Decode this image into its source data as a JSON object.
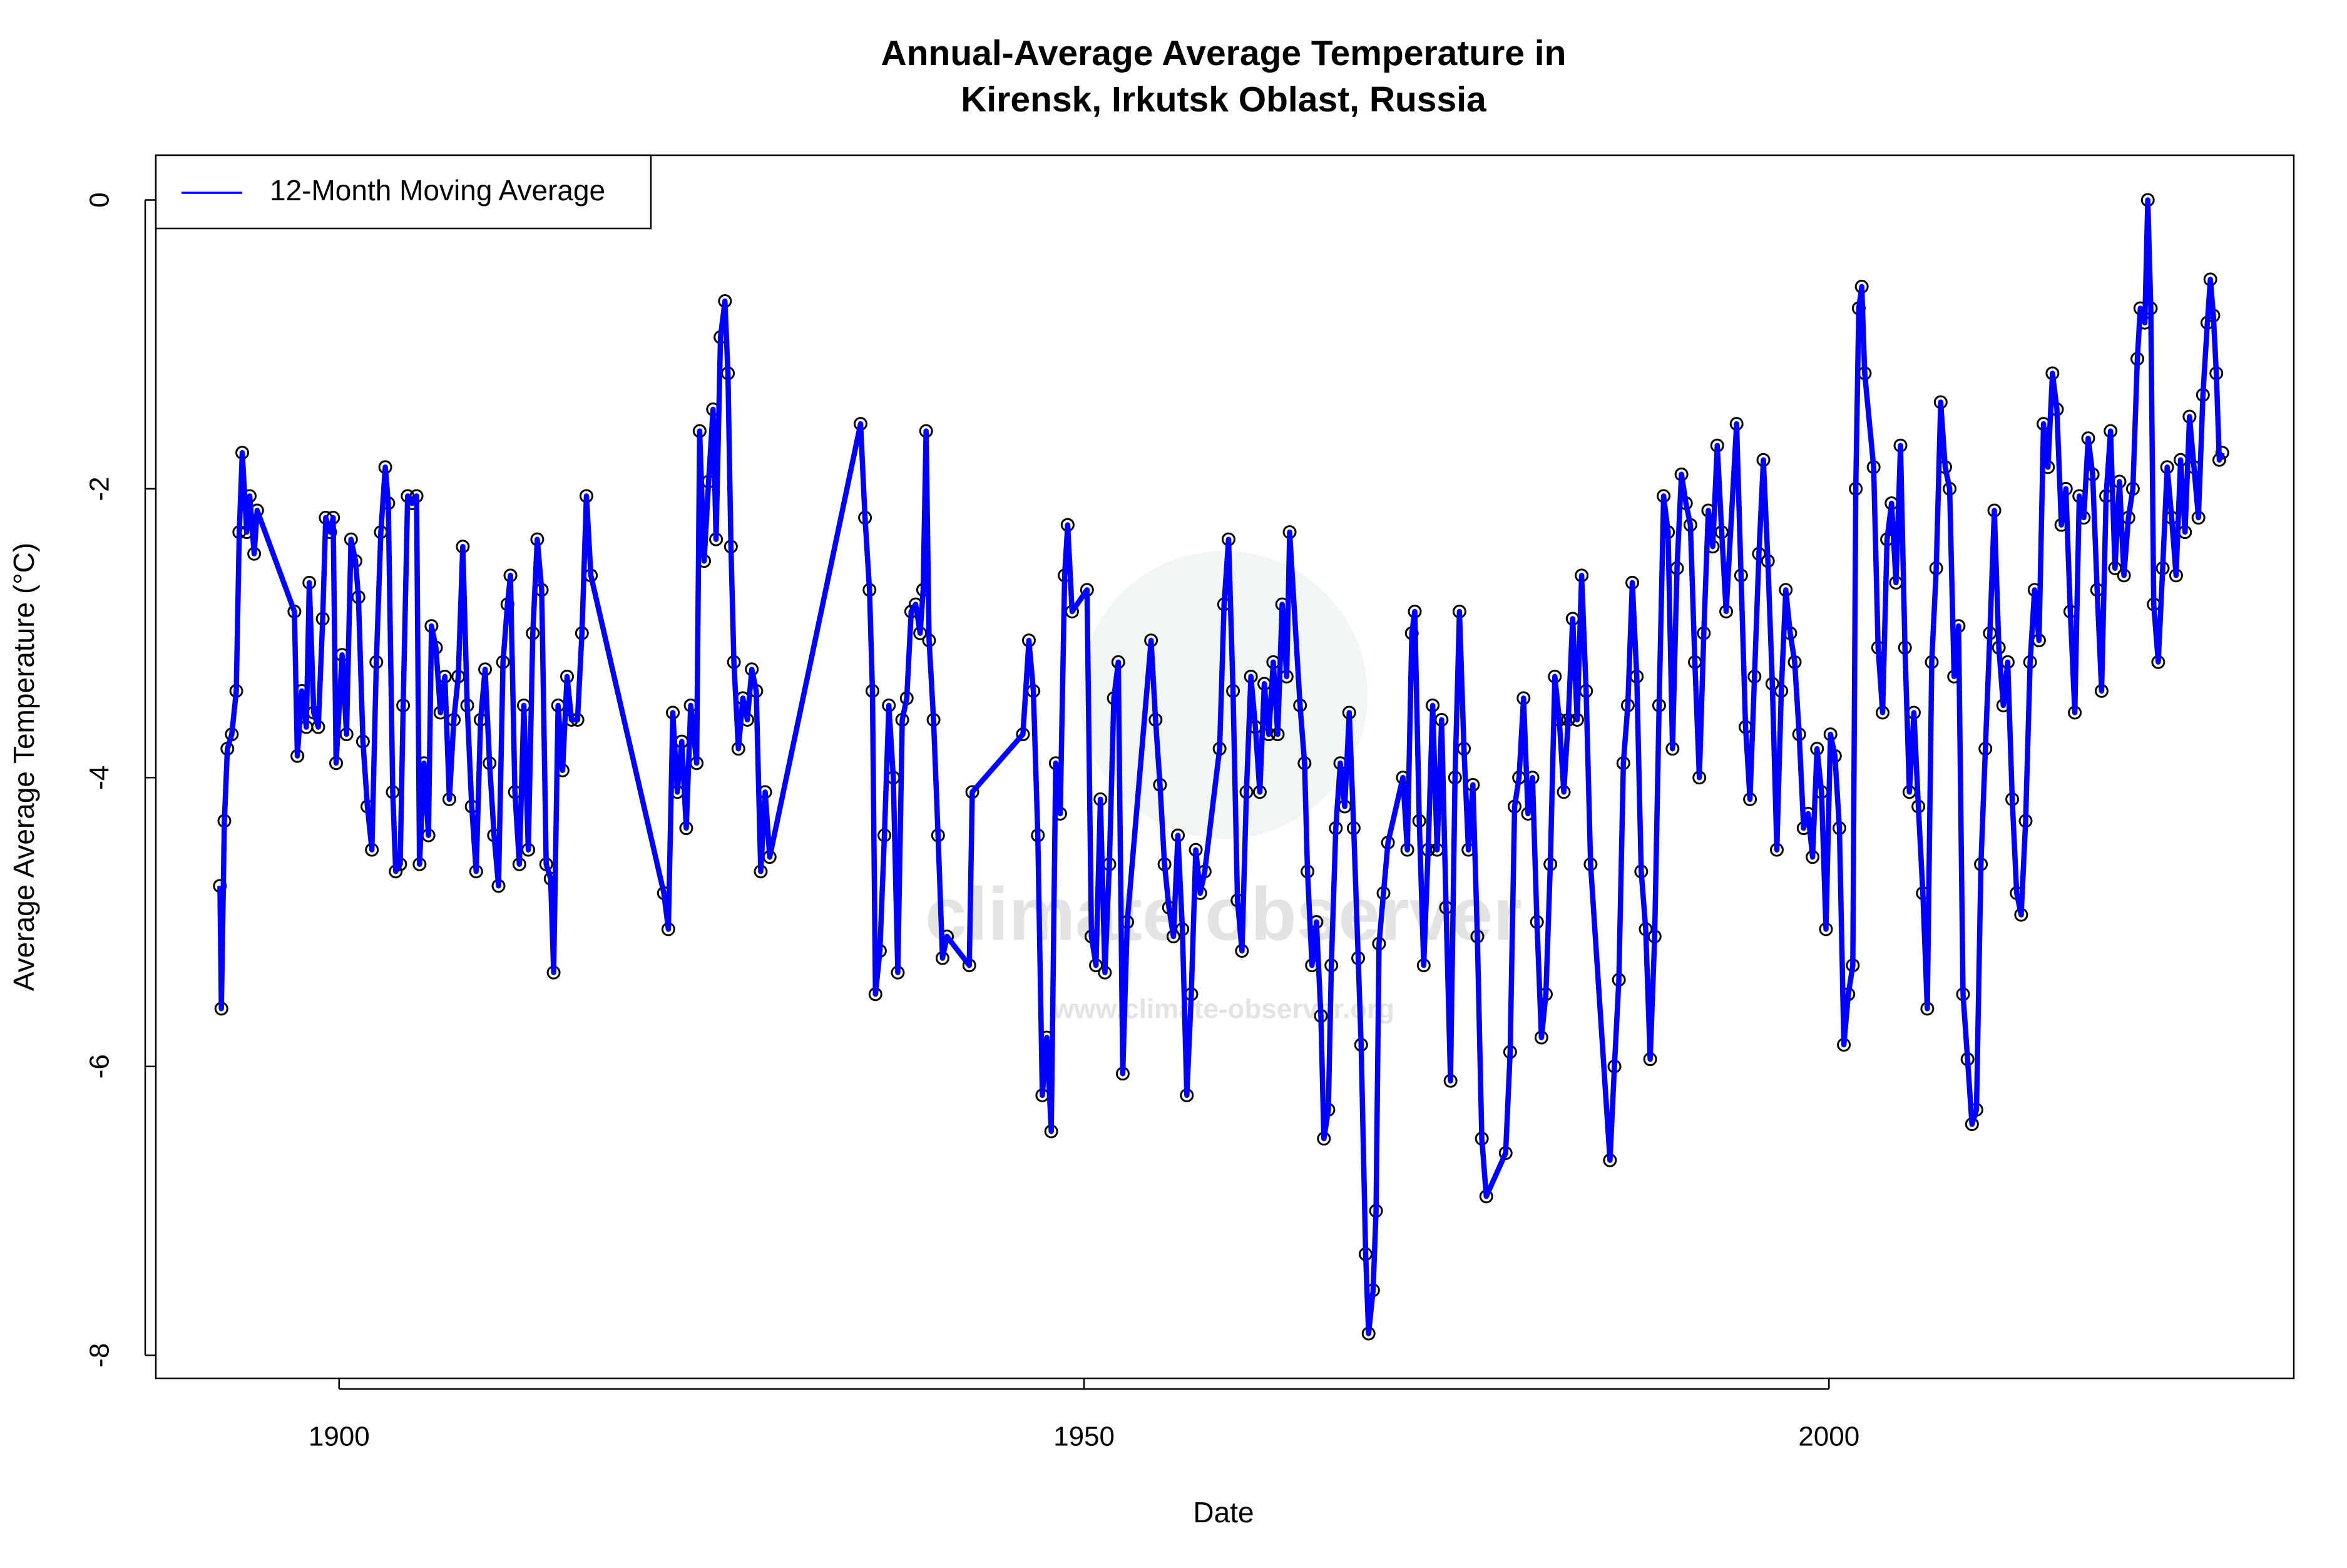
{
  "chart_data": {
    "type": "line",
    "title": [
      "Annual-Average Average Temperature in",
      "Kirensk, Irkutsk Oblast, Russia"
    ],
    "x_label": "Date",
    "y_label": "Average Average Temperature (°C)",
    "watermark": [
      "climate observer",
      "www.climate-observer.org"
    ],
    "legend": "top-left",
    "marker_color": "#000000",
    "xlim": [
      1887.7,
      2031.2
    ],
    "ylim": [
      -8.16,
      0.31
    ],
    "xticks": [
      1900,
      1950,
      2000
    ],
    "yticks": [
      0,
      -2,
      -4,
      -6,
      -8
    ],
    "x": [
      1892.0,
      1892.1,
      1892.3,
      1892.5,
      1892.8,
      1893.1,
      1893.3,
      1893.5,
      1893.8,
      1894.0,
      1894.3,
      1894.5,
      1897.0,
      1897.2,
      1897.5,
      1897.8,
      1898.0,
      1898.3,
      1898.6,
      1898.9,
      1899.1,
      1899.4,
      1899.6,
      1899.8,
      1900.2,
      1900.5,
      1900.8,
      1901.1,
      1901.3,
      1901.6,
      1901.9,
      1902.2,
      1902.5,
      1902.8,
      1903.1,
      1903.3,
      1903.6,
      1903.8,
      1904.1,
      1904.3,
      1904.6,
      1904.9,
      1905.2,
      1905.4,
      1905.7,
      1906.0,
      1906.2,
      1906.5,
      1906.8,
      1907.1,
      1907.4,
      1907.7,
      1908.0,
      1908.3,
      1908.6,
      1908.9,
      1909.2,
      1909.5,
      1909.8,
      1910.1,
      1910.4,
      1910.7,
      1911.0,
      1911.3,
      1911.5,
      1911.8,
      1912.1,
      1912.4,
      1912.7,
      1913.0,
      1913.3,
      1913.6,
      1913.9,
      1914.2,
      1914.4,
      1914.7,
      1915.0,
      1915.3,
      1915.6,
      1916.0,
      1916.3,
      1916.6,
      1916.9,
      1921.8,
      1922.1,
      1922.4,
      1922.7,
      1923.0,
      1923.3,
      1923.6,
      1924.0,
      1924.2,
      1924.5,
      1924.8,
      1925.1,
      1925.3,
      1925.6,
      1925.9,
      1926.1,
      1926.3,
      1926.5,
      1926.8,
      1927.1,
      1927.4,
      1927.7,
      1928.0,
      1928.3,
      1928.6,
      1928.9,
      1935.0,
      1935.3,
      1935.6,
      1935.8,
      1936.0,
      1936.3,
      1936.6,
      1936.9,
      1937.2,
      1937.5,
      1937.8,
      1938.1,
      1938.4,
      1938.7,
      1939.0,
      1939.2,
      1939.4,
      1939.6,
      1939.9,
      1940.2,
      1940.5,
      1940.8,
      1942.3,
      1942.5,
      1945.9,
      1946.3,
      1946.6,
      1946.9,
      1947.2,
      1947.5,
      1947.8,
      1948.1,
      1948.4,
      1948.7,
      1948.9,
      1949.2,
      1950.2,
      1950.5,
      1950.8,
      1951.1,
      1951.4,
      1951.7,
      1952.0,
      1952.3,
      1952.6,
      1952.9,
      1954.5,
      1954.8,
      1955.1,
      1955.4,
      1955.7,
      1956.0,
      1956.3,
      1956.6,
      1956.9,
      1957.2,
      1957.5,
      1957.8,
      1958.1,
      1959.1,
      1959.4,
      1959.7,
      1960.0,
      1960.3,
      1960.6,
      1960.9,
      1961.2,
      1961.5,
      1961.8,
      1962.1,
      1962.4,
      1962.7,
      1963.0,
      1963.3,
      1963.6,
      1963.8,
      1964.5,
      1964.8,
      1965.0,
      1965.3,
      1965.6,
      1965.9,
      1966.1,
      1966.4,
      1966.6,
      1966.9,
      1967.2,
      1967.5,
      1967.8,
      1968.1,
      1968.4,
      1968.6,
      1968.9,
      1969.1,
      1969.4,
      1969.6,
      1969.8,
      1970.1,
      1970.4,
      1971.4,
      1971.7,
      1972.0,
      1972.2,
      1972.5,
      1972.8,
      1973.1,
      1973.4,
      1973.7,
      1974.0,
      1974.3,
      1974.6,
      1974.9,
      1975.2,
      1975.5,
      1975.8,
      1976.1,
      1976.4,
      1976.7,
      1977.0,
      1978.3,
      1978.6,
      1978.9,
      1979.2,
      1979.5,
      1979.8,
      1980.1,
      1980.4,
      1980.7,
      1981.0,
      1981.3,
      1981.6,
      1981.9,
      1982.2,
      1982.5,
      1982.8,
      1983.1,
      1983.4,
      1983.7,
      1984.0,
      1985.3,
      1985.6,
      1985.9,
      1986.2,
      1986.5,
      1986.8,
      1987.1,
      1987.4,
      1987.7,
      1988.0,
      1988.3,
      1988.6,
      1988.9,
      1989.2,
      1989.5,
      1989.8,
      1990.1,
      1990.4,
      1990.7,
      1991.0,
      1991.3,
      1991.6,
      1991.9,
      1992.2,
      1992.5,
      1992.8,
      1993.1,
      1993.8,
      1994.1,
      1994.4,
      1994.7,
      1995.0,
      1995.3,
      1995.6,
      1995.9,
      1996.2,
      1996.5,
      1996.8,
      1997.1,
      1997.4,
      1997.7,
      1998.0,
      1998.3,
      1998.6,
      1998.9,
      1999.2,
      1999.5,
      1999.8,
      2000.1,
      2000.4,
      2000.7,
      2001.0,
      2001.3,
      2001.6,
      2001.8,
      2002.0,
      2002.2,
      2002.4,
      2003.0,
      2003.3,
      2003.6,
      2003.9,
      2004.2,
      2004.5,
      2004.8,
      2005.1,
      2005.4,
      2005.7,
      2006.0,
      2006.3,
      2006.6,
      2006.9,
      2007.2,
      2007.5,
      2007.8,
      2008.1,
      2008.4,
      2008.7,
      2009.0,
      2009.3,
      2009.6,
      2009.9,
      2010.2,
      2010.5,
      2010.8,
      2011.1,
      2011.4,
      2011.7,
      2012.0,
      2012.3,
      2012.6,
      2012.9,
      2013.2,
      2013.5,
      2013.8,
      2014.1,
      2014.4,
      2014.7,
      2015.0,
      2015.3,
      2015.6,
      2015.9,
      2016.2,
      2016.5,
      2016.8,
      2017.1,
      2017.4,
      2017.7,
      2018.0,
      2018.3,
      2018.6,
      2018.9,
      2019.2,
      2019.5,
      2019.8,
      2020.1,
      2020.4,
      2020.7,
      2020.9,
      2021.2,
      2021.4,
      2021.6,
      2021.8,
      2022.1,
      2022.4,
      2022.7,
      2023.0,
      2023.3,
      2023.6,
      2023.9,
      2024.2,
      2024.5,
      2024.8,
      2025.1,
      2025.4,
      2025.6,
      2025.8,
      2026.0,
      2026.2,
      2026.4
    ],
    "series": [
      {
        "name": "12-Month Moving Average",
        "color": "#0000ff",
        "values": [
          -4.75,
          -5.6,
          -4.3,
          -3.8,
          -3.7,
          -3.4,
          -2.3,
          -1.75,
          -2.3,
          -2.05,
          -2.45,
          -2.15,
          -2.85,
          -3.85,
          -3.4,
          -3.65,
          -2.65,
          -3.55,
          -3.65,
          -2.9,
          -2.2,
          -2.3,
          -2.2,
          -3.9,
          -3.15,
          -3.7,
          -2.35,
          -2.5,
          -2.75,
          -3.75,
          -4.2,
          -4.5,
          -3.2,
          -2.3,
          -1.85,
          -2.1,
          -4.1,
          -4.65,
          -4.6,
          -3.5,
          -2.05,
          -2.1,
          -2.05,
          -4.6,
          -3.9,
          -4.4,
          -2.95,
          -3.1,
          -3.55,
          -3.3,
          -4.15,
          -3.6,
          -3.3,
          -2.4,
          -3.5,
          -4.2,
          -4.65,
          -3.6,
          -3.25,
          -3.9,
          -4.4,
          -4.75,
          -3.2,
          -2.8,
          -2.6,
          -4.1,
          -4.6,
          -3.5,
          -4.5,
          -3.0,
          -2.35,
          -2.7,
          -4.6,
          -4.7,
          -5.35,
          -3.5,
          -3.95,
          -3.3,
          -3.6,
          -3.6,
          -3.0,
          -2.05,
          -2.6,
          -4.8,
          -5.05,
          -3.55,
          -4.1,
          -3.75,
          -4.35,
          -3.5,
          -3.9,
          -1.6,
          -2.5,
          -1.95,
          -1.45,
          -2.35,
          -0.95,
          -0.7,
          -1.2,
          -2.4,
          -3.2,
          -3.8,
          -3.45,
          -3.6,
          -3.25,
          -3.4,
          -4.65,
          -4.1,
          -4.55,
          -1.55,
          -2.2,
          -2.7,
          -3.4,
          -5.5,
          -5.2,
          -4.4,
          -3.5,
          -4.0,
          -5.35,
          -3.6,
          -3.45,
          -2.85,
          -2.8,
          -3.0,
          -2.7,
          -1.6,
          -3.05,
          -3.6,
          -4.4,
          -5.25,
          -5.1,
          -5.3,
          -4.1,
          -3.7,
          -3.05,
          -3.4,
          -4.4,
          -6.2,
          -5.8,
          -6.45,
          -3.9,
          -4.25,
          -2.6,
          -2.25,
          -2.85,
          -2.7,
          -5.1,
          -5.3,
          -4.15,
          -5.35,
          -4.6,
          -3.45,
          -3.2,
          -6.05,
          -5.0,
          -3.05,
          -3.6,
          -4.05,
          -4.6,
          -4.9,
          -5.1,
          -4.4,
          -5.05,
          -6.2,
          -5.5,
          -4.5,
          -4.8,
          -4.65,
          -3.8,
          -2.8,
          -2.35,
          -3.4,
          -4.85,
          -5.2,
          -4.1,
          -3.3,
          -3.65,
          -4.1,
          -3.35,
          -3.7,
          -3.2,
          -3.7,
          -2.8,
          -3.3,
          -2.3,
          -3.5,
          -3.9,
          -4.65,
          -5.3,
          -5.0,
          -5.65,
          -6.5,
          -6.3,
          -5.3,
          -4.35,
          -3.9,
          -4.2,
          -3.55,
          -4.35,
          -5.25,
          -5.85,
          -7.3,
          -7.85,
          -7.55,
          -7.0,
          -5.15,
          -4.8,
          -4.45,
          -4.0,
          -4.5,
          -3.0,
          -2.85,
          -4.3,
          -5.3,
          -4.5,
          -3.5,
          -4.5,
          -3.6,
          -4.9,
          -6.1,
          -4.0,
          -2.85,
          -3.8,
          -4.5,
          -4.05,
          -5.1,
          -6.5,
          -6.9,
          -6.6,
          -5.9,
          -4.2,
          -4.0,
          -3.45,
          -4.25,
          -4.0,
          -5.0,
          -5.8,
          -5.5,
          -4.6,
          -3.3,
          -3.6,
          -4.1,
          -3.6,
          -2.9,
          -3.6,
          -2.6,
          -3.4,
          -4.6,
          -6.65,
          -6.0,
          -5.4,
          -3.9,
          -3.5,
          -2.65,
          -3.3,
          -4.65,
          -5.05,
          -5.95,
          -5.1,
          -3.5,
          -2.05,
          -2.3,
          -3.8,
          -2.55,
          -1.9,
          -2.1,
          -2.25,
          -3.2,
          -4.0,
          -3.0,
          -2.15,
          -2.4,
          -1.7,
          -2.3,
          -2.85,
          -1.55,
          -2.6,
          -3.65,
          -4.15,
          -3.3,
          -2.45,
          -1.8,
          -2.5,
          -3.35,
          -4.5,
          -3.4,
          -2.7,
          -3.0,
          -3.2,
          -3.7,
          -4.35,
          -4.25,
          -4.55,
          -3.8,
          -4.1,
          -5.05,
          -3.7,
          -3.85,
          -4.35,
          -5.85,
          -5.5,
          -5.3,
          -2.0,
          -0.75,
          -0.6,
          -1.2,
          -1.85,
          -3.1,
          -3.55,
          -2.35,
          -2.1,
          -2.65,
          -1.7,
          -3.1,
          -4.1,
          -3.55,
          -4.2,
          -4.8,
          -5.6,
          -3.2,
          -2.55,
          -1.4,
          -1.85,
          -2.0,
          -3.3,
          -2.95,
          -5.5,
          -5.95,
          -6.4,
          -6.3,
          -4.6,
          -3.8,
          -3.0,
          -2.15,
          -3.1,
          -3.5,
          -3.2,
          -4.15,
          -4.8,
          -4.95,
          -4.3,
          -3.2,
          -2.7,
          -3.05,
          -1.55,
          -1.85,
          -1.2,
          -1.45,
          -2.25,
          -2.0,
          -2.85,
          -3.55,
          -2.05,
          -2.2,
          -1.65,
          -1.9,
          -2.7,
          -3.4,
          -2.05,
          -1.6,
          -2.55,
          -1.95,
          -2.6,
          -2.2,
          -2.0,
          -1.1,
          -0.75,
          -0.85,
          0.0,
          -0.75,
          -2.8,
          -3.2,
          -2.55,
          -1.85,
          -2.2,
          -2.6,
          -1.8,
          -2.3,
          -1.5,
          -1.85,
          -2.2,
          -1.35,
          -0.85,
          -0.55,
          -0.8,
          -1.2,
          -1.8,
          -1.75
        ]
      }
    ]
  }
}
